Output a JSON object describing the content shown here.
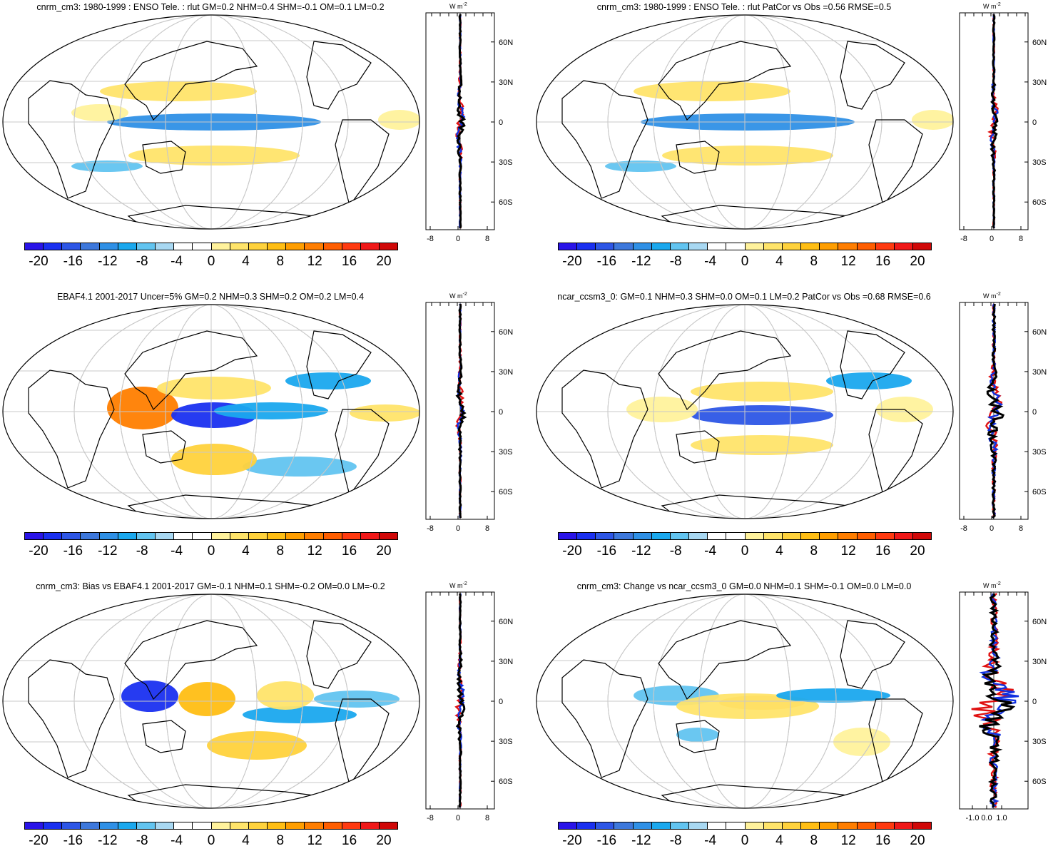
{
  "colorbar": {
    "labels": [
      "-20",
      "-16",
      "-12",
      "-8",
      "-4",
      "0",
      "4",
      "8",
      "12",
      "16",
      "20"
    ],
    "colors": [
      "#2a14e8",
      "#1a30f0",
      "#2d56e6",
      "#3d78dc",
      "#2f90e6",
      "#1aa8ee",
      "#62c4f0",
      "#a8d8f2",
      "#ffffff",
      "#ffffff",
      "#fff29c",
      "#ffe46a",
      "#ffd23c",
      "#ffbe14",
      "#ff9e00",
      "#ff7e00",
      "#ff5e00",
      "#ff3a10",
      "#f01818",
      "#d00808"
    ]
  },
  "profile": {
    "unit": "W m",
    "unit_exp": "-2",
    "lat_labels": [
      "60N",
      "30N",
      "0",
      "30S",
      "60S"
    ],
    "lat_values": [
      60,
      30,
      0,
      -30,
      -60
    ],
    "x_labels_default": [
      "-8",
      "0",
      "8"
    ],
    "x_labels_change": [
      "-1.0",
      "0.0",
      "1.0"
    ],
    "series_colors": {
      "model": "#e01010",
      "obs": "#1030e0",
      "diff": "#000000"
    }
  },
  "panels": [
    {
      "id": "p1",
      "title": "cnrm_cm3: 1980-1999 : ENSO Tele. : rlut GM=0.2 NHM=0.4 SHM=-0.1 OM=0.1 LM=0.2",
      "x_labels": "default",
      "amp": "small"
    },
    {
      "id": "p2",
      "title": "cnrm_cm3: 1980-1999 : ENSO Tele. : rlut PatCor vs Obs =0.56 RMSE=0.5",
      "x_labels": "default",
      "amp": "small"
    },
    {
      "id": "p3",
      "title": "EBAF4.1 2001-2017 Uncer=5% GM=0.2 NHM=0.3 SHM=0.2 OM=0.2 LM=0.4",
      "x_labels": "default",
      "amp": "small"
    },
    {
      "id": "p4",
      "title": "ncar_ccsm3_0: GM=0.1 NHM=0.3 SHM=0.0 OM=0.1 LM=0.2 PatCor vs Obs =0.68 RMSE=0.6",
      "x_labels": "default",
      "amp": "medium"
    },
    {
      "id": "p5",
      "title": "cnrm_cm3: Bias vs EBAF4.1 2001-2017 GM=-0.1 NHM=0.1 SHM=-0.2 OM=0.0 LM=-0.2",
      "x_labels": "default",
      "amp": "small"
    },
    {
      "id": "p6",
      "title": "cnrm_cm3: Change vs ncar_ccsm3_0 GM=0.0 NHM=0.1 SHM=-0.1 OM=0.0 LM=0.0",
      "x_labels": "change",
      "amp": "large"
    }
  ]
}
